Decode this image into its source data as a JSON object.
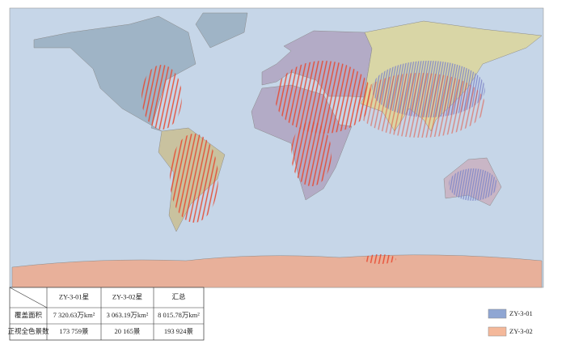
{
  "table": {
    "header": [
      "ZY-3-01星",
      "ZY-3-02星",
      "汇总"
    ],
    "rows": [
      [
        "覆盖面积",
        "7 320.63万km²",
        "3 063.19万km²",
        "8 015.78万km²"
      ],
      [
        "正视全色景数",
        "173 759景",
        "20 165景",
        "193 924景"
      ]
    ]
  },
  "legend": [
    {
      "label": "ZY-3-01",
      "color": "#8fa6d3"
    },
    {
      "label": "ZY-3-02",
      "color": "#f4b89a"
    }
  ]
}
